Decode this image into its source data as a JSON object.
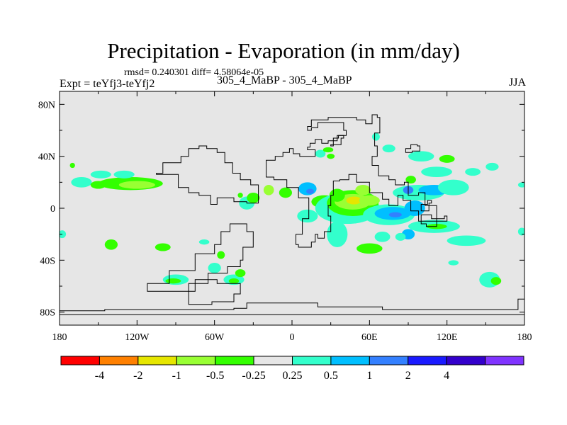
{
  "colors": {
    "land_fill": "#e6e6e6",
    "outline": "#000000",
    "bins": [
      "#ff0000",
      "#ff8000",
      "#e6e600",
      "#99ff33",
      "#33ff00",
      "#e6e6e6",
      "#33ffcc",
      "#00bfff",
      "#3380ff",
      "#1a1aff",
      "#3300cc",
      "#8033ff"
    ]
  },
  "chart_data": {
    "type": "heatmap",
    "title": "Precipitation - Evaporation (in mm/day)",
    "stats": "rmsd= 0.240301 diff= 4.58064e-05",
    "experiment": "Expt = teYfj3-teYfj2",
    "subtitle": "305_4_MaBP - 305_4_MaBP",
    "season": "JJA",
    "xlim": [
      -180,
      180
    ],
    "ylim": [
      -90,
      90
    ],
    "x_ticks": [
      {
        "value": -180,
        "label": "180"
      },
      {
        "value": -120,
        "label": "120W"
      },
      {
        "value": -60,
        "label": "60W"
      },
      {
        "value": 0,
        "label": "0"
      },
      {
        "value": 60,
        "label": "60E"
      },
      {
        "value": 120,
        "label": "120E"
      },
      {
        "value": 180,
        "label": "180"
      }
    ],
    "y_ticks": [
      {
        "value": 80,
        "label": "80N"
      },
      {
        "value": 40,
        "label": "40N"
      },
      {
        "value": 0,
        "label": "0"
      },
      {
        "value": -40,
        "label": "40S"
      },
      {
        "value": -80,
        "label": "80S"
      }
    ],
    "colorbar_labels": [
      "-4",
      "-2",
      "-1",
      "-0.5",
      "-0.25",
      "0.25",
      "0.5",
      "1",
      "2",
      "4"
    ],
    "land_outline": [
      [
        [
          -145,
          -78
        ],
        [
          -45,
          -77
        ],
        [
          -35,
          -73
        ],
        [
          10,
          -73
        ],
        [
          20,
          -76
        ],
        [
          70,
          -78
        ],
        [
          140,
          -78
        ],
        [
          175,
          -70
        ],
        [
          180,
          -75
        ],
        [
          180,
          -82
        ],
        [
          -180,
          -82
        ],
        [
          -180,
          -79
        ],
        [
          -145,
          -78
        ]
      ],
      [
        [
          -20,
          37
        ],
        [
          -13,
          40
        ],
        [
          -7,
          43
        ],
        [
          -2,
          46
        ],
        [
          1,
          42
        ],
        [
          6,
          40
        ],
        [
          18,
          40
        ],
        [
          18,
          45
        ],
        [
          12,
          47
        ],
        [
          14,
          50
        ],
        [
          18,
          53
        ],
        [
          23,
          50
        ],
        [
          28,
          52
        ],
        [
          35,
          56
        ],
        [
          42,
          60
        ],
        [
          40,
          66
        ],
        [
          22,
          66
        ],
        [
          20,
          62
        ],
        [
          15,
          60
        ],
        [
          12,
          63
        ],
        [
          15,
          68
        ],
        [
          28,
          70
        ],
        [
          50,
          68
        ],
        [
          57,
          65
        ],
        [
          62,
          72
        ],
        [
          66,
          70
        ],
        [
          68,
          58
        ],
        [
          64,
          48
        ],
        [
          66,
          40
        ],
        [
          62,
          33
        ],
        [
          67,
          25
        ],
        [
          75,
          22
        ],
        [
          80,
          18
        ],
        [
          87,
          20
        ],
        [
          90,
          10
        ],
        [
          98,
          12
        ],
        [
          103,
          2
        ],
        [
          112,
          -8
        ],
        [
          118,
          -6
        ],
        [
          120,
          -10
        ],
        [
          108,
          -10
        ],
        [
          98,
          -2
        ],
        [
          92,
          6
        ],
        [
          86,
          10
        ],
        [
          82,
          2
        ],
        [
          75,
          7
        ],
        [
          70,
          12
        ],
        [
          60,
          20
        ],
        [
          50,
          26
        ],
        [
          44,
          22
        ],
        [
          37,
          21
        ],
        [
          32,
          10
        ],
        [
          30,
          2
        ],
        [
          28,
          -6
        ],
        [
          30,
          -18
        ],
        [
          25,
          -23
        ],
        [
          20,
          -20
        ],
        [
          18,
          -26
        ],
        [
          15,
          -30
        ],
        [
          5,
          -28
        ],
        [
          3,
          -20
        ],
        [
          8,
          -8
        ],
        [
          13,
          -2
        ],
        [
          13,
          8
        ],
        [
          5,
          16
        ],
        [
          -4,
          22
        ],
        [
          -14,
          24
        ],
        [
          -20,
          30
        ],
        [
          -20,
          37
        ]
      ],
      [
        [
          -80,
          16
        ],
        [
          -88,
          26
        ],
        [
          -105,
          27
        ],
        [
          -100,
          35
        ],
        [
          -86,
          40
        ],
        [
          -80,
          46
        ],
        [
          -72,
          48
        ],
        [
          -66,
          46
        ],
        [
          -58,
          43
        ],
        [
          -52,
          35
        ],
        [
          -46,
          27
        ],
        [
          -40,
          22
        ],
        [
          -32,
          18
        ],
        [
          -26,
          12
        ],
        [
          -26,
          4
        ],
        [
          -35,
          5
        ],
        [
          -45,
          8
        ],
        [
          -58,
          3
        ],
        [
          -63,
          10
        ],
        [
          -72,
          12
        ],
        [
          -80,
          16
        ]
      ],
      [
        [
          -35,
          -12
        ],
        [
          -48,
          -18
        ],
        [
          -55,
          -28
        ],
        [
          -60,
          -35
        ],
        [
          -75,
          -48
        ],
        [
          -95,
          -58
        ],
        [
          -112,
          -64
        ],
        [
          -95,
          -64
        ],
        [
          -80,
          -58
        ],
        [
          -65,
          -50
        ],
        [
          -50,
          -45
        ],
        [
          -40,
          -40
        ],
        [
          -38,
          -30
        ],
        [
          -30,
          -18
        ],
        [
          -35,
          -12
        ]
      ],
      [
        [
          -58,
          -55
        ],
        [
          -75,
          -64
        ],
        [
          -80,
          -74
        ],
        [
          -62,
          -72
        ],
        [
          -45,
          -66
        ],
        [
          -40,
          -58
        ],
        [
          -58,
          -55
        ]
      ],
      [
        [
          30,
          48
        ],
        [
          32,
          54
        ],
        [
          36,
          56
        ],
        [
          40,
          54
        ],
        [
          38,
          49
        ],
        [
          30,
          48
        ]
      ],
      [
        [
          88,
          46
        ],
        [
          92,
          49
        ],
        [
          97,
          48
        ],
        [
          99,
          44
        ],
        [
          93,
          43
        ],
        [
          88,
          46
        ]
      ],
      [
        [
          100,
          3
        ],
        [
          105,
          6
        ],
        [
          108,
          4
        ],
        [
          106,
          -2
        ],
        [
          100,
          3
        ]
      ],
      [
        [
          100,
          -5
        ],
        [
          108,
          -8
        ],
        [
          112,
          -14
        ],
        [
          104,
          -12
        ],
        [
          100,
          -5
        ]
      ]
    ],
    "anomalies": [
      {
        "lon": -125,
        "lat": 19,
        "rx": 25,
        "ry": 5,
        "bin": 4
      },
      {
        "lon": -120,
        "lat": 18,
        "rx": 14,
        "ry": 3,
        "bin": 3
      },
      {
        "lon": -163,
        "lat": 20,
        "rx": 8,
        "ry": 4,
        "bin": 6
      },
      {
        "lon": -148,
        "lat": 26,
        "rx": 8,
        "ry": 3,
        "bin": 6
      },
      {
        "lon": -130,
        "lat": 26,
        "rx": 8,
        "ry": 3,
        "bin": 6
      },
      {
        "lon": -150,
        "lat": 18,
        "rx": 6,
        "ry": 3,
        "bin": 4
      },
      {
        "lon": -170,
        "lat": 33,
        "rx": 2,
        "ry": 2,
        "bin": 4
      },
      {
        "lon": -140,
        "lat": -28,
        "rx": 5,
        "ry": 4,
        "bin": 4
      },
      {
        "lon": -100,
        "lat": -30,
        "rx": 6,
        "ry": 3,
        "bin": 4
      },
      {
        "lon": -68,
        "lat": -26,
        "rx": 4,
        "ry": 2,
        "bin": 6
      },
      {
        "lon": -90,
        "lat": -55,
        "rx": 10,
        "ry": 4,
        "bin": 6
      },
      {
        "lon": -92,
        "lat": -56,
        "rx": 6,
        "ry": 2,
        "bin": 4
      },
      {
        "lon": -45,
        "lat": -55,
        "rx": 8,
        "ry": 4,
        "bin": 6
      },
      {
        "lon": -45,
        "lat": -56,
        "rx": 4,
        "ry": 2,
        "bin": 4
      },
      {
        "lon": -60,
        "lat": -46,
        "rx": 5,
        "ry": 4,
        "bin": 6
      },
      {
        "lon": -55,
        "lat": -36,
        "rx": 3,
        "ry": 3,
        "bin": 4
      },
      {
        "lon": -40,
        "lat": -50,
        "rx": 4,
        "ry": 3,
        "bin": 4
      },
      {
        "lon": -35,
        "lat": 4,
        "rx": 6,
        "ry": 5,
        "bin": 6
      },
      {
        "lon": -30,
        "lat": 8,
        "rx": 5,
        "ry": 4,
        "bin": 4
      },
      {
        "lon": -40,
        "lat": 10,
        "rx": 2,
        "ry": 2,
        "bin": 4
      },
      {
        "lon": -18,
        "lat": 14,
        "rx": 4,
        "ry": 4,
        "bin": 3
      },
      {
        "lon": -5,
        "lat": 12,
        "rx": 5,
        "ry": 4,
        "bin": 4
      },
      {
        "lon": 12,
        "lat": 15,
        "rx": 7,
        "ry": 5,
        "bin": 7
      },
      {
        "lon": 14,
        "lat": 13,
        "rx": 3,
        "ry": 2,
        "bin": 8
      },
      {
        "lon": 25,
        "lat": 5,
        "rx": 10,
        "ry": 5,
        "bin": 4
      },
      {
        "lon": 12,
        "lat": -6,
        "rx": 8,
        "ry": 5,
        "bin": 6
      },
      {
        "lon": 35,
        "lat": -20,
        "rx": 8,
        "ry": 10,
        "bin": 6
      },
      {
        "lon": 43,
        "lat": 0,
        "rx": 25,
        "ry": 12,
        "bin": 6
      },
      {
        "lon": 47,
        "lat": 4,
        "rx": 20,
        "ry": 10,
        "bin": 4
      },
      {
        "lon": 47,
        "lat": 5,
        "rx": 14,
        "ry": 6,
        "bin": 3
      },
      {
        "lon": 48,
        "lat": 6,
        "rx": 6,
        "ry": 3,
        "bin": 2
      },
      {
        "lon": 55,
        "lat": 14,
        "rx": 6,
        "ry": 4,
        "bin": 3
      },
      {
        "lon": 35,
        "lat": 10,
        "rx": 6,
        "ry": 5,
        "bin": 4
      },
      {
        "lon": 60,
        "lat": 6,
        "rx": 8,
        "ry": 4,
        "bin": 3
      },
      {
        "lon": 75,
        "lat": -5,
        "rx": 20,
        "ry": 8,
        "bin": 6
      },
      {
        "lon": 78,
        "lat": -4,
        "rx": 14,
        "ry": 5,
        "bin": 7
      },
      {
        "lon": 80,
        "lat": -5,
        "rx": 5,
        "ry": 2,
        "bin": 8
      },
      {
        "lon": 98,
        "lat": 12,
        "rx": 20,
        "ry": 6,
        "bin": 6
      },
      {
        "lon": 110,
        "lat": 14,
        "rx": 12,
        "ry": 4,
        "bin": 7
      },
      {
        "lon": 90,
        "lat": 14,
        "rx": 4,
        "ry": 3,
        "bin": 8
      },
      {
        "lon": 95,
        "lat": 0,
        "rx": 8,
        "ry": 6,
        "bin": 7
      },
      {
        "lon": 125,
        "lat": 16,
        "rx": 12,
        "ry": 6,
        "bin": 6
      },
      {
        "lon": 92,
        "lat": 22,
        "rx": 4,
        "ry": 3,
        "bin": 4
      },
      {
        "lon": 112,
        "lat": 28,
        "rx": 12,
        "ry": 4,
        "bin": 6
      },
      {
        "lon": 140,
        "lat": 28,
        "rx": 6,
        "ry": 3,
        "bin": 6
      },
      {
        "lon": 100,
        "lat": 40,
        "rx": 10,
        "ry": 4,
        "bin": 6
      },
      {
        "lon": 110,
        "lat": -14,
        "rx": 20,
        "ry": 5,
        "bin": 6
      },
      {
        "lon": 112,
        "lat": -14,
        "rx": 8,
        "ry": 2,
        "bin": 4
      },
      {
        "lon": 90,
        "lat": -20,
        "rx": 5,
        "ry": 4,
        "bin": 7
      },
      {
        "lon": 84,
        "lat": -22,
        "rx": 4,
        "ry": 3,
        "bin": 6
      },
      {
        "lon": 70,
        "lat": -22,
        "rx": 6,
        "ry": 4,
        "bin": 6
      },
      {
        "lon": 60,
        "lat": -31,
        "rx": 10,
        "ry": 4,
        "bin": 4
      },
      {
        "lon": 135,
        "lat": -25,
        "rx": 15,
        "ry": 4,
        "bin": 6
      },
      {
        "lon": 153,
        "lat": -55,
        "rx": 8,
        "ry": 6,
        "bin": 6
      },
      {
        "lon": 158,
        "lat": -56,
        "rx": 4,
        "ry": 3,
        "bin": 4
      },
      {
        "lon": 125,
        "lat": -42,
        "rx": 4,
        "ry": 2,
        "bin": 6
      },
      {
        "lon": 120,
        "lat": 38,
        "rx": 6,
        "ry": 3,
        "bin": 4
      },
      {
        "lon": 75,
        "lat": 46,
        "rx": 5,
        "ry": 3,
        "bin": 6
      },
      {
        "lon": 65,
        "lat": 55,
        "rx": 3,
        "ry": 3,
        "bin": 6
      },
      {
        "lon": 22,
        "lat": 42,
        "rx": 4,
        "ry": 3,
        "bin": 6
      },
      {
        "lon": 28,
        "lat": 45,
        "rx": 4,
        "ry": 2,
        "bin": 4
      },
      {
        "lon": 30,
        "lat": 40,
        "rx": 3,
        "ry": 2,
        "bin": 4
      },
      {
        "lon": 155,
        "lat": 32,
        "rx": 5,
        "ry": 3,
        "bin": 6
      },
      {
        "lon": 178,
        "lat": 18,
        "rx": 3,
        "ry": 2,
        "bin": 6
      },
      {
        "lon": -178,
        "lat": -20,
        "rx": 3,
        "ry": 3,
        "bin": 6
      },
      {
        "lon": 178,
        "lat": -18,
        "rx": 3,
        "ry": 3,
        "bin": 6
      }
    ]
  }
}
